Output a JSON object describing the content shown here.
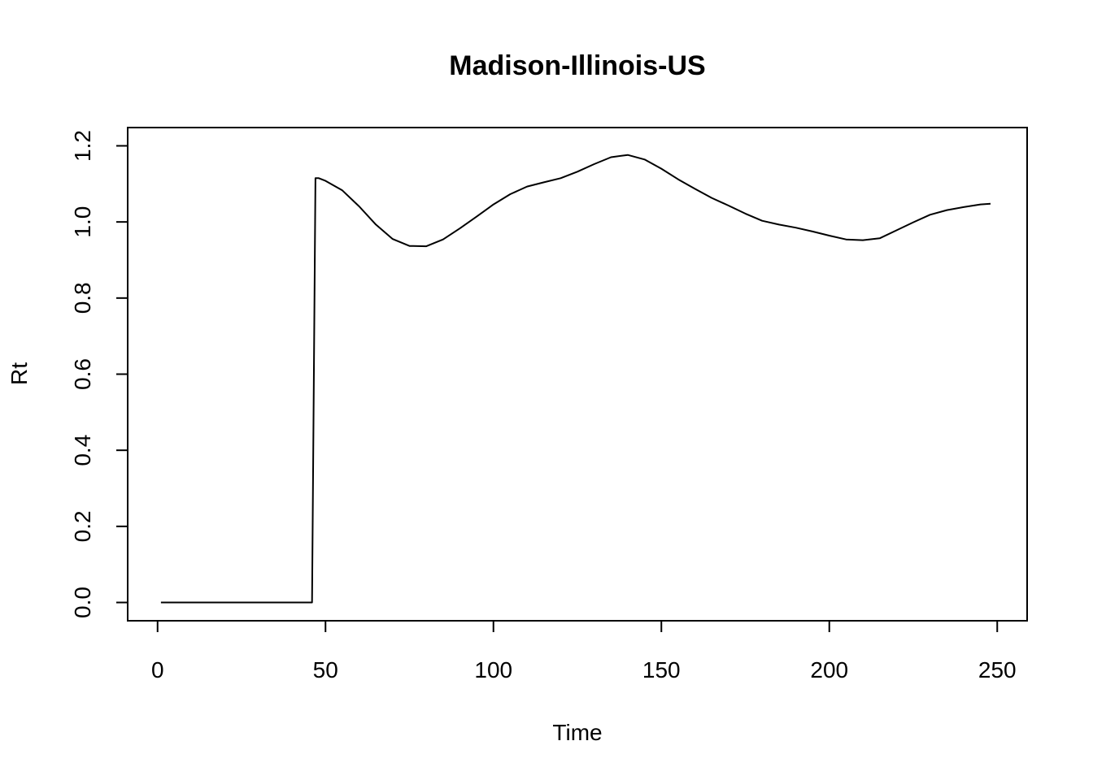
{
  "chart_data": {
    "type": "line",
    "title": "Madison-Illinois-US",
    "xlabel": "Time",
    "ylabel": "Rt",
    "xlim": [
      -8.9,
      258.9
    ],
    "ylim": [
      -0.048,
      1.248
    ],
    "x_ticks": [
      0,
      50,
      100,
      150,
      200,
      250
    ],
    "y_ticks": [
      0.0,
      0.2,
      0.4,
      0.6,
      0.8,
      1.0,
      1.2
    ],
    "x_tick_labels": [
      "0",
      "50",
      "100",
      "150",
      "200",
      "250"
    ],
    "y_tick_labels": [
      "0.0",
      "0.2",
      "0.4",
      "0.6",
      "0.8",
      "1.0",
      "1.2"
    ],
    "grid": false,
    "line_color": "#000000",
    "series": [
      {
        "x": [
          1,
          46,
          47,
          48,
          50,
          55,
          60,
          65,
          70,
          75,
          80,
          85,
          90,
          95,
          100,
          105,
          110,
          115,
          120,
          125,
          130,
          135,
          140,
          145,
          150,
          155,
          160,
          165,
          170,
          175,
          180,
          185,
          190,
          195,
          200,
          205,
          210,
          215,
          220,
          225,
          230,
          235,
          240,
          245,
          248
        ],
        "y": [
          0.0,
          0.0,
          1.115,
          1.115,
          1.108,
          1.083,
          1.041,
          0.993,
          0.955,
          0.937,
          0.936,
          0.954,
          0.983,
          1.014,
          1.046,
          1.073,
          1.093,
          1.104,
          1.115,
          1.132,
          1.152,
          1.17,
          1.176,
          1.164,
          1.14,
          1.112,
          1.087,
          1.063,
          1.043,
          1.022,
          1.003,
          0.993,
          0.985,
          0.975,
          0.964,
          0.954,
          0.952,
          0.957,
          0.978,
          0.999,
          1.019,
          1.031,
          1.039,
          1.046,
          1.048
        ]
      }
    ]
  }
}
